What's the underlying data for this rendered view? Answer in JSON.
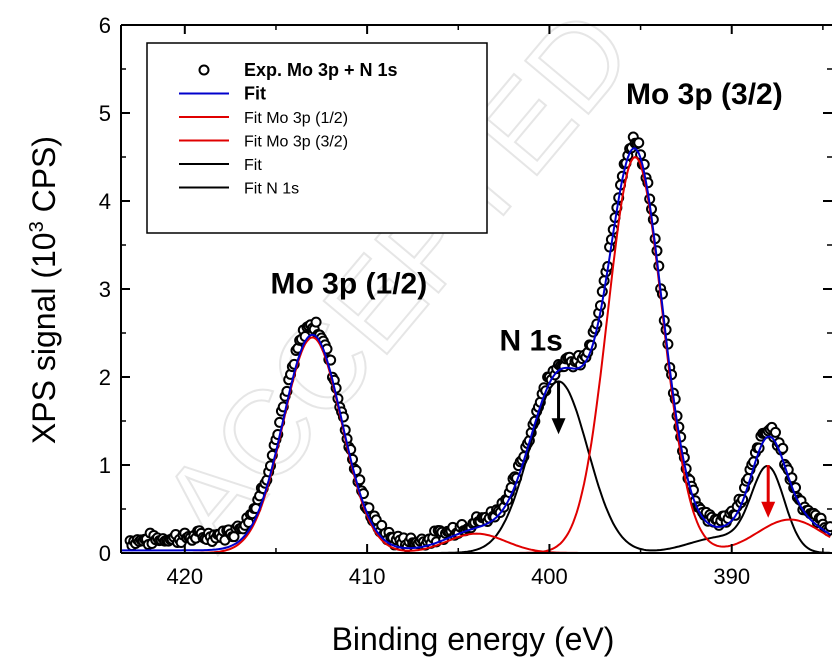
{
  "chart_data": {
    "type": "line",
    "xlabel": "Binding energy  (eV)",
    "ylabel_main": "XPS signal (10",
    "ylabel_sup": "3",
    "ylabel_tail": " CPS)",
    "xlim": [
      423.5,
      384.5
    ],
    "ylim": [
      0,
      6
    ],
    "x_reversed": true,
    "x_ticks": [
      420,
      410,
      400,
      390
    ],
    "y_ticks": [
      0,
      1,
      2,
      3,
      4,
      5,
      6
    ],
    "grid": false,
    "legend_position": "top-left",
    "legend": [
      {
        "label": "Exp. Mo 3p + N 1s",
        "marker": "open-circle",
        "color": "#000000",
        "bold": true
      },
      {
        "label": "Fit",
        "marker": "line",
        "color": "#0000cc",
        "bold": true
      },
      {
        "label": "Fit Mo 3p (1/2)",
        "marker": "line",
        "color": "#e00000",
        "bold": false
      },
      {
        "label": "Fit Mo 3p (3/2)",
        "marker": "line",
        "color": "#e00000",
        "bold": false
      },
      {
        "label": "Fit",
        "marker": "line",
        "color": "#000000",
        "bold": false
      },
      {
        "label": "Fit N 1s",
        "marker": "line",
        "color": "#000000",
        "bold": false
      }
    ],
    "annotations": [
      {
        "text": "Mo 3p (1/2)",
        "x": 411.0,
        "y": 2.95
      },
      {
        "text": "Mo 3p (3/2)",
        "x": 391.5,
        "y": 5.1
      },
      {
        "text": "N 1s",
        "x": 401.0,
        "y": 2.3
      }
    ],
    "arrows": [
      {
        "x": 399.5,
        "y_top": 1.95,
        "y_bottom": 1.35,
        "color": "#000000"
      },
      {
        "x": 388.0,
        "y_top": 1.0,
        "y_bottom": 0.4,
        "color": "#e00000"
      }
    ],
    "series": [
      {
        "name": "Fit Mo 3p (1/2)",
        "color": "#e00000",
        "components": [
          {
            "center": 413.0,
            "height": 2.45,
            "width": 1.6
          },
          {
            "center": 404.0,
            "height": 0.22,
            "width": 1.6
          }
        ]
      },
      {
        "name": "Fit Mo 3p (3/2)",
        "color": "#e00000",
        "components": [
          {
            "center": 395.3,
            "height": 4.5,
            "width": 1.5
          },
          {
            "center": 386.8,
            "height": 0.38,
            "width": 1.8
          }
        ]
      },
      {
        "name": "Fit N 1s",
        "color": "#000000",
        "components": [
          {
            "center": 399.5,
            "height": 1.95,
            "width": 1.6
          },
          {
            "center": 388.0,
            "height": 0.92,
            "width": 0.9
          },
          {
            "center": 390.5,
            "height": 0.18,
            "width": 1.8
          }
        ]
      },
      {
        "name": "Fit",
        "color": "#0000cc",
        "components": "sum"
      }
    ],
    "experimental": {
      "name": "Exp. Mo 3p + N 1s",
      "x_start": 423.0,
      "x_end": 384.5,
      "step": 0.1,
      "noise": 0.06
    }
  },
  "watermark": "ACCEPTED"
}
